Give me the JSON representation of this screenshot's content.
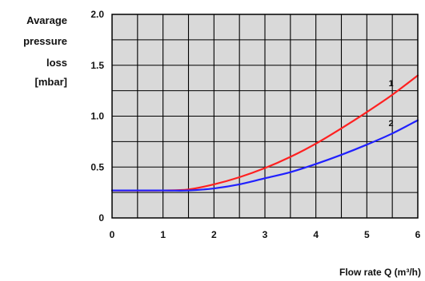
{
  "chart_data": {
    "type": "line",
    "ylabel_lines": [
      "Avarage",
      "pressure",
      "loss",
      "[mbar]"
    ],
    "xlabel": "Flow rate Q (m³/h)",
    "xlim": [
      0,
      6
    ],
    "ylim": [
      0,
      2.0
    ],
    "x_ticks": [
      0,
      1,
      2,
      3,
      4,
      5,
      6
    ],
    "x_tick_labels": [
      "0",
      "1",
      "2",
      "3",
      "4",
      "5",
      "6"
    ],
    "y_ticks": [
      0,
      0.5,
      1.0,
      1.5,
      2.0
    ],
    "y_tick_labels": [
      "0",
      "0.5",
      "1.0",
      "1.5",
      "2.0"
    ],
    "grid": true,
    "background": "#d9d9d9",
    "series": [
      {
        "name": "1",
        "color": "#ff2020",
        "x": [
          0,
          1,
          1.5,
          2,
          2.5,
          3,
          3.5,
          4,
          4.5,
          5,
          5.5,
          6
        ],
        "y": [
          0.27,
          0.27,
          0.28,
          0.33,
          0.4,
          0.49,
          0.6,
          0.73,
          0.88,
          1.04,
          1.21,
          1.4
        ]
      },
      {
        "name": "2",
        "color": "#2020ff",
        "x": [
          0,
          1,
          1.5,
          2,
          2.5,
          3,
          3.5,
          4,
          4.5,
          5,
          5.5,
          6
        ],
        "y": [
          0.27,
          0.27,
          0.27,
          0.29,
          0.33,
          0.39,
          0.45,
          0.53,
          0.62,
          0.72,
          0.83,
          0.96
        ]
      }
    ]
  }
}
